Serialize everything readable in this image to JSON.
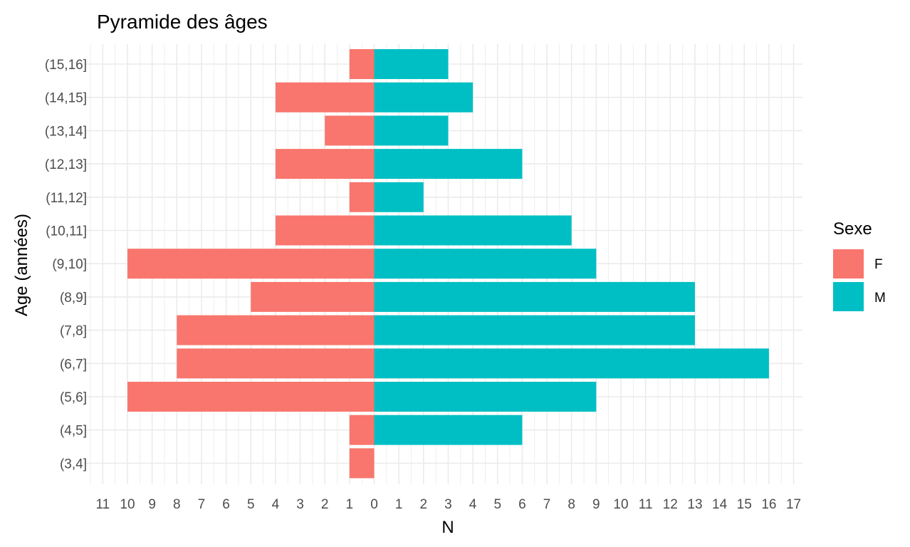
{
  "chart_data": {
    "type": "bar",
    "orientation": "horizontal",
    "title": "Pyramide des âges",
    "xlabel": "N",
    "ylabel": "Age (années)",
    "categories": [
      "(3,4]",
      "(4,5]",
      "(5,6]",
      "(6,7]",
      "(7,8]",
      "(8,9]",
      "(9,10]",
      "(10,11]",
      "(11,12]",
      "(12,13]",
      "(13,14]",
      "(14,15]",
      "(15,16]"
    ],
    "series": [
      {
        "name": "F",
        "color": "#F8766D",
        "direction": "left",
        "values": [
          1,
          1,
          10,
          8,
          8,
          5,
          10,
          4,
          1,
          4,
          2,
          4,
          1
        ]
      },
      {
        "name": "M",
        "color": "#00BFC4",
        "direction": "right",
        "values": [
          0,
          6,
          9,
          16,
          13,
          13,
          9,
          8,
          2,
          6,
          3,
          4,
          3
        ]
      }
    ],
    "xlim": [
      -11,
      17
    ],
    "x_ticks": [
      -11,
      -10,
      -9,
      -8,
      -7,
      -6,
      -5,
      -4,
      -3,
      -2,
      -1,
      0,
      1,
      2,
      3,
      4,
      5,
      6,
      7,
      8,
      9,
      10,
      11,
      12,
      13,
      14,
      15,
      16,
      17
    ],
    "x_tick_labels": [
      "11",
      "10",
      "9",
      "8",
      "7",
      "6",
      "5",
      "4",
      "3",
      "2",
      "1",
      "0",
      "1",
      "2",
      "3",
      "4",
      "5",
      "6",
      "7",
      "8",
      "9",
      "10",
      "11",
      "12",
      "13",
      "14",
      "15",
      "16",
      "17"
    ],
    "legend": {
      "title": "Sexe",
      "position": "right"
    },
    "grid": true
  }
}
